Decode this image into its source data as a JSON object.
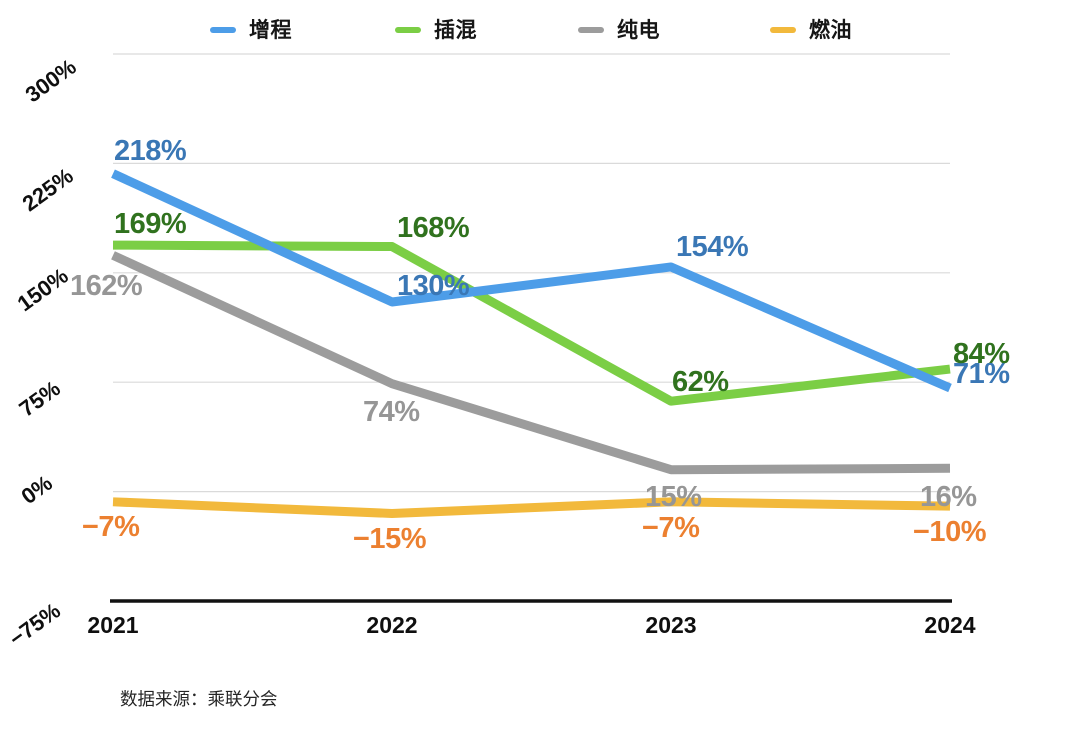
{
  "chart_data": {
    "type": "line",
    "title": "",
    "categories": [
      "2021",
      "2022",
      "2023",
      "2024"
    ],
    "series": [
      {
        "name": "增程",
        "color": "#4D9DE8",
        "label_color": "#3A77B5",
        "values": [
          218,
          130,
          154,
          71
        ]
      },
      {
        "name": "插混",
        "color": "#7BCE45",
        "label_color": "#30721E",
        "values": [
          169,
          168,
          62,
          84
        ]
      },
      {
        "name": "纯电",
        "color": "#9C9C9C",
        "label_color": "#969696",
        "values": [
          162,
          74,
          15,
          16
        ]
      },
      {
        "name": "燃油",
        "color": "#F2B93C",
        "label_color": "#EC8030",
        "values": [
          -7,
          -15,
          -7,
          -10
        ]
      }
    ],
    "ylim": [
      -75,
      300
    ],
    "yticks": [
      300,
      225,
      150,
      75,
      0,
      -75
    ],
    "tick_suffix": "%",
    "grid": true,
    "value_labels": true,
    "legend_position": "top",
    "grid_color": "#DADADA",
    "axis_color": "#111111"
  },
  "footer": {
    "text": "数据来源：乘联分会"
  }
}
